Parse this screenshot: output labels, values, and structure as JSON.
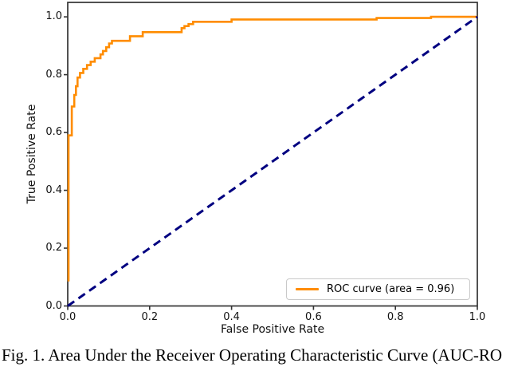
{
  "figure": {
    "caption": "Fig. 1. Area Under the Receiver Operating Characteristic Curve (AUC-RO"
  },
  "chart_data": {
    "type": "line",
    "title": "",
    "xlabel": "False Positive Rate",
    "ylabel": "True Positive Rate",
    "xlim": [
      0.0,
      1.0
    ],
    "ylim": [
      0.0,
      1.05
    ],
    "grid": false,
    "x_tick_labels": [
      "0.0",
      "0.2",
      "0.4",
      "0.6",
      "0.8",
      "1.0"
    ],
    "x_tick_values": [
      0.0,
      0.2,
      0.4,
      0.6,
      0.8,
      1.0
    ],
    "y_tick_labels": [
      "0.0",
      "0.2",
      "0.4",
      "0.6",
      "0.8",
      "1.0"
    ],
    "y_tick_values": [
      0.0,
      0.2,
      0.4,
      0.6,
      0.8,
      1.0
    ],
    "auc": 0.96,
    "legend": {
      "position": "lower right",
      "entries": [
        {
          "label": "ROC curve (area = 0.96)",
          "color": "#ff8c00",
          "style": "solid"
        }
      ]
    },
    "series": [
      {
        "name": "ROC curve (area = 0.96)",
        "color": "#ff8c00",
        "style": "solid",
        "linewidth": 2.6,
        "points": [
          [
            0.002,
            0.085
          ],
          [
            0.002,
            0.59
          ],
          [
            0.01,
            0.59
          ],
          [
            0.01,
            0.69
          ],
          [
            0.016,
            0.69
          ],
          [
            0.016,
            0.73
          ],
          [
            0.02,
            0.73
          ],
          [
            0.02,
            0.76
          ],
          [
            0.024,
            0.76
          ],
          [
            0.024,
            0.79
          ],
          [
            0.03,
            0.79
          ],
          [
            0.03,
            0.806
          ],
          [
            0.038,
            0.806
          ],
          [
            0.038,
            0.82
          ],
          [
            0.047,
            0.82
          ],
          [
            0.047,
            0.833
          ],
          [
            0.056,
            0.833
          ],
          [
            0.056,
            0.845
          ],
          [
            0.066,
            0.845
          ],
          [
            0.066,
            0.857
          ],
          [
            0.08,
            0.857
          ],
          [
            0.08,
            0.87
          ],
          [
            0.086,
            0.87
          ],
          [
            0.086,
            0.882
          ],
          [
            0.094,
            0.882
          ],
          [
            0.094,
            0.895
          ],
          [
            0.101,
            0.895
          ],
          [
            0.101,
            0.908
          ],
          [
            0.108,
            0.908
          ],
          [
            0.108,
            0.917
          ],
          [
            0.152,
            0.917
          ],
          [
            0.152,
            0.933
          ],
          [
            0.183,
            0.933
          ],
          [
            0.183,
            0.947
          ],
          [
            0.278,
            0.947
          ],
          [
            0.278,
            0.961
          ],
          [
            0.285,
            0.961
          ],
          [
            0.285,
            0.968
          ],
          [
            0.295,
            0.968
          ],
          [
            0.295,
            0.975
          ],
          [
            0.306,
            0.975
          ],
          [
            0.306,
            0.983
          ],
          [
            0.4,
            0.983
          ],
          [
            0.4,
            0.991
          ],
          [
            0.754,
            0.991
          ],
          [
            0.754,
            0.996
          ],
          [
            0.887,
            0.996
          ],
          [
            0.887,
            1.0
          ],
          [
            1.0,
            1.0
          ]
        ]
      },
      {
        "name": "chance-diagonal",
        "color": "#000080",
        "style": "dashed",
        "linewidth": 3,
        "points": [
          [
            0.0,
            0.0
          ],
          [
            1.0,
            1.0
          ]
        ]
      }
    ]
  },
  "colors": {
    "roc_curve": "#ff8c00",
    "diagonal": "#000080",
    "axis": "#333333",
    "text": "#111111",
    "legend_border": "#c9c9c9",
    "background": "#ffffff"
  }
}
